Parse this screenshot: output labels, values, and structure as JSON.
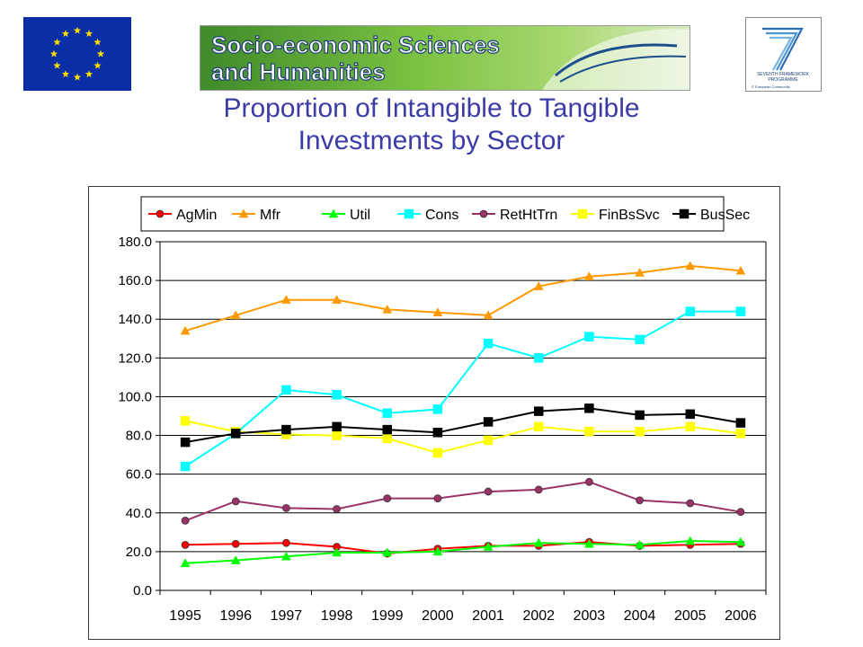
{
  "header": {
    "eu_flag_icon": "eu-flag-icon",
    "banner_line1": "Socio-economic Sciences",
    "banner_line2": "and Humanities",
    "fp7_caption1": "SEVENTH FRAMEWORK",
    "fp7_caption2": "PROGRAMME",
    "fp7_copyright": "© European Community"
  },
  "title_line1": "Proportion of Intangible to Tangible",
  "title_line2": "Investments by Sector",
  "chart_data": {
    "type": "line",
    "title": "",
    "xlabel": "",
    "ylabel": "",
    "ylim": [
      0,
      180
    ],
    "ytick_step": 20,
    "ytick_labels": [
      "0.0",
      "20.0",
      "40.0",
      "60.0",
      "80.0",
      "100.0",
      "120.0",
      "140.0",
      "160.0",
      "180.0"
    ],
    "grid": "horizontal",
    "legend_position": "top",
    "categories": [
      "1995",
      "1996",
      "1997",
      "1998",
      "1999",
      "2000",
      "2001",
      "2002",
      "2003",
      "2004",
      "2005",
      "2006"
    ],
    "series": [
      {
        "name": "AgMin",
        "color": "#ff0000",
        "marker": "circle",
        "values": [
          23.5,
          24,
          24.5,
          22.5,
          19,
          21.5,
          23,
          23,
          25,
          23,
          23.5,
          24
        ]
      },
      {
        "name": "Mfr",
        "color": "#ff9900",
        "marker": "triangle",
        "values": [
          134,
          142,
          150,
          150,
          145,
          143.5,
          142,
          157,
          162,
          164,
          167.5,
          165
        ]
      },
      {
        "name": "Util",
        "color": "#00ff00",
        "marker": "triangle",
        "values": [
          14,
          15.5,
          17.5,
          19.5,
          19.5,
          20,
          22.5,
          24.5,
          24,
          23.5,
          25.5,
          25
        ]
      },
      {
        "name": "Cons",
        "color": "#00ffff",
        "marker": "square",
        "values": [
          64,
          81,
          103.5,
          101,
          91.5,
          93.5,
          127.5,
          120,
          131,
          129.5,
          144,
          144
        ]
      },
      {
        "name": "RetHtTrn",
        "color": "#993366",
        "marker": "circle",
        "values": [
          36,
          46,
          42.5,
          42,
          47.5,
          47.5,
          51,
          52,
          56,
          46.5,
          45,
          40.5
        ]
      },
      {
        "name": "FinBsSvc",
        "color": "#ffff00",
        "marker": "square",
        "values": [
          87.5,
          82,
          80.5,
          80,
          78.5,
          71,
          77.5,
          84.5,
          82,
          82,
          84.5,
          81
        ]
      },
      {
        "name": "BusSec",
        "color": "#000000",
        "marker": "square",
        "values": [
          76.5,
          81,
          83,
          84.5,
          83,
          81.5,
          87,
          92.5,
          94,
          90.5,
          91,
          86.5
        ]
      }
    ]
  }
}
